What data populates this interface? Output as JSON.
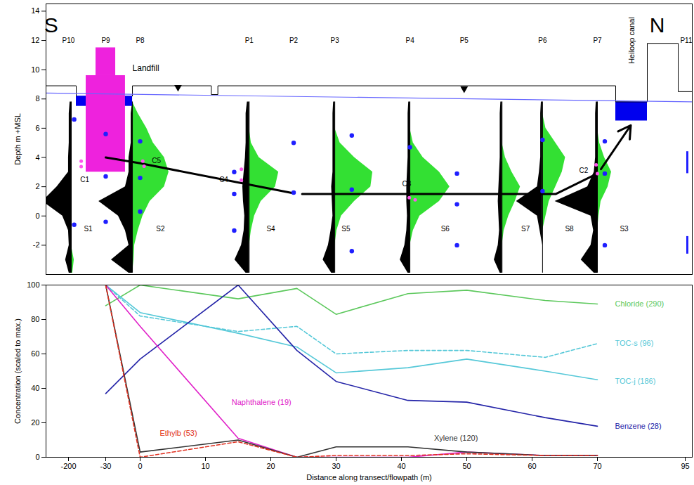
{
  "chart_data": [
    {
      "type": "section",
      "ylabel": "Depth m +MSL",
      "xlim": [
        -300,
        97
      ],
      "xticks": [
        -200,
        -30,
        0,
        10,
        20,
        30,
        40,
        50,
        60,
        70,
        95
      ],
      "ylim": [
        -4,
        14.5
      ],
      "yticks": [
        -2,
        0,
        2,
        4,
        6,
        8,
        10,
        12,
        14
      ],
      "tick_labels": "y",
      "compass": [
        {
          "text": "S",
          "x": -277,
          "y": 13
        },
        {
          "text": "N",
          "x": 87,
          "y": 13
        }
      ],
      "piezometers": {
        "y": 12,
        "labels": [
          "P10",
          "P9",
          "P8",
          "P1",
          "P2",
          "P3",
          "P4",
          "P5",
          "P6",
          "P7",
          "P11"
        ],
        "x": [
          -200,
          -30,
          0,
          16.7,
          23.5,
          29.8,
          41.3,
          49.6,
          61.6,
          70,
          97
        ]
      },
      "ground": {
        "color": "#000000",
        "x": [
          -300,
          -164.7,
          -164.7,
          -164.7,
          -6.7,
          -6.7,
          10.9,
          10.9,
          11.9,
          11.9,
          75.2,
          75.2,
          84.2,
          84.2,
          93,
          93,
          97
        ],
        "y": [
          8.9,
          8.9,
          8.2,
          null,
          8.2,
          8.9,
          8.9,
          8.3,
          8.3,
          8.9,
          8.9,
          7.8,
          7.8,
          11.8,
          11.8,
          8.5,
          8.5
        ]
      },
      "water_table": {
        "color": "#6666ff",
        "x": [
          -300,
          97
        ],
        "y": [
          8.4,
          7.8
        ]
      },
      "water_level_markers": {
        "marker": "triangle-down",
        "color": "#000000",
        "x": [
          5.8,
          49.6
        ],
        "y": [
          8.8,
          8.7
        ]
      },
      "landfill": {
        "label": "Landfill",
        "label_x": -6.7,
        "label_y": 10.1,
        "color": "#ee22dd",
        "rects": [
          {
            "x1": -119.8,
            "x2": -12.9,
            "y1": 3.0,
            "y2": 9.6
          },
          {
            "x1": -74.9,
            "x2": -21.4,
            "y1": 9.6,
            "y2": 11.5
          }
        ]
      },
      "water_bodies": {
        "color": "#0000ee",
        "rects": [
          {
            "x1": -164.7,
            "x2": -119.8,
            "y1": 7.5,
            "y2": 8.2
          },
          {
            "x1": -12.9,
            "x2": -6.7,
            "y1": 7.5,
            "y2": 8.2
          },
          {
            "x1": 75.2,
            "x2": 84.2,
            "y1": 6.5,
            "y2": 7.8
          }
        ]
      },
      "canal_label": {
        "text": "Heiloop canal",
        "x": 79.8,
        "y": 12
      },
      "flowline": {
        "color": "#000000",
        "x": [
          -30,
          0,
          23.5,
          24,
          24.8,
          63.6,
          70
        ],
        "y": [
          4.0,
          3.6,
          1.55,
          null,
          1.5,
          1.5,
          2.9
        ]
      },
      "arrow": {
        "x1": 71,
        "y1": 3.2,
        "x2": 79.5,
        "y2": 6.2,
        "color": "#000000"
      },
      "profiles": {
        "depths": [
          7.8,
          7,
          6,
          5,
          4,
          3,
          2,
          1,
          0,
          -1,
          -2,
          -3,
          -3.9
        ],
        "left_color": "#000000",
        "right_color": "#33e033",
        "items": [
          {
            "label": "S1",
            "x": -187.2,
            "label_x": -110,
            "label_y": -0.9,
            "left": [
              -6,
              -10,
              -10,
              -10,
              -13,
              -13,
              -64,
              -128,
              -39,
              -13,
              -10,
              -26,
              -10
            ],
            "right": [
              0,
              0,
              0,
              0,
              0,
              0,
              0,
              0,
              0,
              0,
              0,
              13,
              6
            ]
          },
          {
            "label": "S2",
            "x": -6.7,
            "label_x": 3.1,
            "label_y": -0.9,
            "left": [
              0,
              -1.2,
              -1.2,
              -1.2,
              -3.1,
              -3.1,
              -6.2,
              -55,
              -12.3,
              -6.2,
              -3.1,
              -18.4,
              -3.1
            ],
            "right": [
              0,
              4.9,
              7.7,
              8.7,
              10.4,
              11.1,
              10.4,
              8.2,
              7.1,
              4.9,
              1.8,
              1.2,
              0
            ]
          },
          {
            "label": "S4",
            "x": 16.7,
            "label_x": 20,
            "label_y": -0.9,
            "left": [
              -0.3,
              -0.5,
              -0.5,
              -0.5,
              -0.6,
              -0.8,
              -1.0,
              -0.9,
              -0.7,
              -0.8,
              -1.2,
              -2.2,
              -0.5
            ],
            "right": [
              0,
              0,
              0,
              0.3,
              1.5,
              4.5,
              4.0,
              1.8,
              0.8,
              0.3,
              0,
              0,
              0
            ]
          },
          {
            "label": "S5",
            "x": 29.8,
            "label_x": 31.5,
            "label_y": -0.9,
            "left": [
              -0.2,
              -0.3,
              -0.3,
              -0.3,
              -0.3,
              -0.3,
              -0.5,
              -0.4,
              -0.3,
              -0.6,
              -1.0,
              -1.8,
              -0.5
            ],
            "right": [
              0,
              0,
              0,
              0.8,
              3.0,
              5.8,
              5.5,
              3.0,
              1.0,
              0.3,
              0,
              0,
              0
            ]
          },
          {
            "label": "S6",
            "x": 41.3,
            "label_x": 46.7,
            "label_y": -0.9,
            "left": [
              -0.2,
              -0.3,
              -0.3,
              -0.3,
              -0.3,
              -0.4,
              -0.5,
              -0.5,
              -0.4,
              -0.5,
              -0.8,
              -1.5,
              -0.3
            ],
            "right": [
              0,
              0,
              0,
              0.5,
              2.0,
              4.5,
              6.1,
              4.5,
              1.5,
              0.5,
              0,
              0,
              0
            ]
          },
          {
            "label": "S7",
            "x": 55.4,
            "label_x": 59,
            "label_y": -0.9,
            "left": [
              -0.2,
              -0.3,
              -0.3,
              -0.3,
              -0.3,
              -0.4,
              -0.5,
              -0.6,
              -0.5,
              -0.4,
              -0.6,
              -1.2,
              -0.3
            ],
            "right": [
              0,
              0,
              0,
              0,
              0.5,
              1.5,
              2.8,
              2.0,
              1.0,
              0.3,
              0,
              0,
              0
            ]
          },
          {
            "label": "S8",
            "x": 61.6,
            "label_x": 65.7,
            "label_y": -0.9,
            "left": [
              -0.2,
              -0.3,
              -0.3,
              -0.3,
              -0.3,
              -0.5,
              -0.8,
              -4.0,
              -0.8,
              -0.4,
              0,
              0,
              0
            ],
            "right": [
              0,
              0,
              0.5,
              2.0,
              3.5,
              3.0,
              2.0,
              1.0,
              0.5,
              0,
              0,
              0,
              0
            ]
          },
          {
            "label": "S3",
            "x": 70,
            "label_x": 77.6,
            "label_y": -0.9,
            "left": [
              -0.2,
              -0.3,
              -0.3,
              -0.3,
              -0.3,
              -0.5,
              -1.5,
              -6.5,
              -1.0,
              -0.6,
              -1.0,
              -2.5,
              -0.5
            ],
            "right": [
              0,
              0,
              0,
              0.6,
              2.0,
              4.0,
              3.0,
              1.0,
              0.4,
              0,
              0,
              0,
              0
            ]
          }
        ]
      },
      "sample_points": {
        "color": "#1f1fff",
        "x": [
          -174,
          -174,
          -30,
          -30,
          -30,
          0,
          0,
          0,
          14.4,
          14.4,
          14.4,
          23.5,
          23.5,
          32.4,
          32.4,
          32.4,
          41.3,
          48.5,
          48.5,
          48.5,
          61.6,
          61.6,
          72.1,
          72.1,
          72.1
        ],
        "y": [
          6.6,
          -0.6,
          5.6,
          2.7,
          -0.4,
          5.1,
          2.6,
          0.3,
          3.0,
          1.5,
          -1.0,
          5.0,
          1.6,
          5.5,
          1.8,
          -2.4,
          4.7,
          2.9,
          0.8,
          -2.0,
          5.2,
          1.7,
          5.1,
          2.9,
          -2.0
        ]
      },
      "screens": {
        "color": "#1f1fff",
        "x": 95.6,
        "y1": [
          4.4,
          -1.4
        ],
        "y2": [
          2.9,
          -2.6
        ]
      },
      "core_samples": {
        "color": "#ff55ee",
        "x": [
          -142,
          -142,
          0.4,
          0.6,
          15.5,
          15.5,
          41.2,
          42.1,
          69.8,
          70
        ],
        "y": [
          3.75,
          3.37,
          3.75,
          3.4,
          3.2,
          2.45,
          1.25,
          1.1,
          3.5,
          2.9
        ],
        "labels": [
          {
            "text": "C1",
            "x": -126,
            "y": 2.45
          },
          {
            "text": "C5",
            "x": 2.5,
            "y": 3.75
          },
          {
            "text": "C4",
            "x": 12.8,
            "y": 2.45
          },
          {
            "text": "C3",
            "x": 40.8,
            "y": 2.2
          },
          {
            "text": "C2",
            "x": 67.9,
            "y": 3.1
          }
        ]
      }
    },
    {
      "type": "line",
      "xlabel": "Distance along transect/flowpath (m)",
      "ylabel": "Concentration (scaled to max.)",
      "xlim": [
        -300,
        97
      ],
      "xticks": [
        -200,
        -30,
        0,
        10,
        20,
        30,
        40,
        50,
        60,
        70,
        95
      ],
      "ylim": [
        0,
        100
      ],
      "yticks": [
        0,
        20,
        40,
        60,
        80,
        100
      ],
      "x": [
        -30,
        0,
        15,
        24,
        30,
        41,
        50,
        62,
        70
      ],
      "series": [
        {
          "name": "Chloride (290)",
          "color": "#5cc85c",
          "line_style": "solid",
          "label_at": [
            75,
            89
          ],
          "values": [
            88,
            100,
            92,
            98,
            83,
            95,
            97,
            91,
            89
          ]
        },
        {
          "name": "TOC-s (96)",
          "color": "#55c8d8",
          "line_style": "dashed",
          "label_at": [
            75,
            66
          ],
          "values": [
            100,
            82,
            73,
            76,
            60,
            62,
            62,
            58,
            66
          ]
        },
        {
          "name": "TOC-j (186)",
          "color": "#55c8d8",
          "line_style": "solid",
          "label_at": [
            75,
            44
          ],
          "values": [
            100,
            84,
            72,
            64,
            49,
            52,
            57,
            50,
            45
          ]
        },
        {
          "name": "Benzene (28)",
          "color": "#2424a8",
          "line_style": "solid",
          "label_at": [
            75,
            18
          ],
          "values": [
            37,
            57,
            100,
            62,
            44,
            33,
            32,
            23,
            18
          ]
        },
        {
          "name": "Naphthalene (19)",
          "color": "#e020c8",
          "line_style": "solid",
          "label_at": [
            14,
            32
          ],
          "values": [
            100,
            76,
            11,
            0,
            0,
            0,
            3,
            1,
            1
          ]
        },
        {
          "name": "Xylene (120)",
          "color": "#333333",
          "line_style": "solid",
          "label_at": [
            45,
            11
          ],
          "values": [
            100,
            3,
            10,
            0,
            6,
            6,
            3,
            1,
            1
          ]
        },
        {
          "name": "Ethylb (53)",
          "color": "#e03020",
          "line_style": "dashed",
          "label_at": [
            3,
            14
          ],
          "values": [
            100,
            0,
            9,
            0,
            1,
            1,
            2,
            1,
            1
          ]
        }
      ]
    }
  ]
}
